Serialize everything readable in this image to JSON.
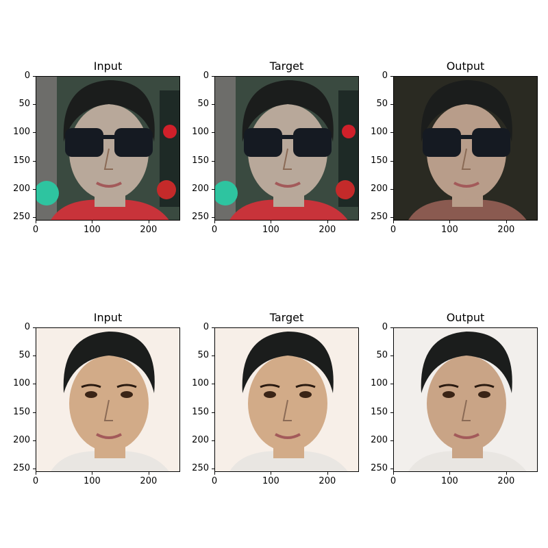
{
  "rows": [
    {
      "panels": [
        {
          "title": "Input",
          "image": "sunglasses-face-input"
        },
        {
          "title": "Target",
          "image": "sunglasses-face-target"
        },
        {
          "title": "Output",
          "image": "sunglasses-face-output"
        }
      ]
    },
    {
      "panels": [
        {
          "title": "Input",
          "image": "face-input"
        },
        {
          "title": "Target",
          "image": "face-target"
        },
        {
          "title": "Output",
          "image": "face-output"
        }
      ]
    }
  ],
  "axis": {
    "y_ticks": [
      "0",
      "50",
      "100",
      "150",
      "200",
      "250"
    ],
    "x_ticks": [
      "0",
      "100",
      "200"
    ]
  }
}
